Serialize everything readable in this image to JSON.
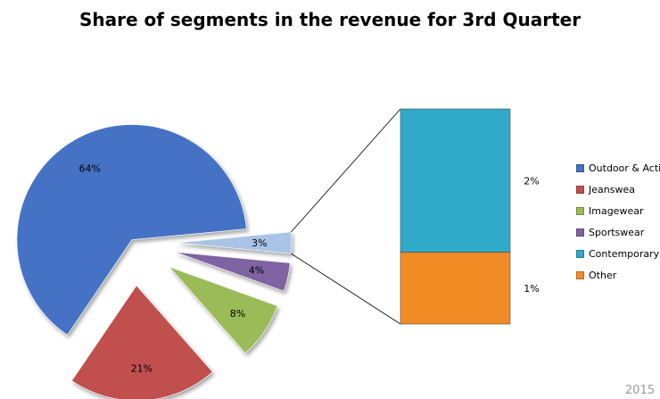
{
  "chart_data": {
    "type": "bar-of-pie",
    "title": "Share of  segments in the revenue for 3rd Quarter",
    "pie": [
      {
        "name": "Outdoor & Acti",
        "value": 64,
        "label": "64%",
        "color": "#4472C4"
      },
      {
        "name": "Jeanswea",
        "value": 21,
        "label": "21%",
        "color": "#C0504D"
      },
      {
        "name": "Imagewear",
        "value": 8,
        "label": "8%",
        "color": "#9BBB59"
      },
      {
        "name": "Sportswear",
        "value": 4,
        "label": "4%",
        "color": "#8064A2"
      },
      {
        "name": "Other (Contemporary + Other)",
        "value": 3,
        "label": "3%",
        "color": "#A9C4E6"
      }
    ],
    "bar": [
      {
        "name": "Contemporary",
        "value": 2,
        "label": "2%",
        "color": "#31A9C9"
      },
      {
        "name": "Other",
        "value": 1,
        "label": "1%",
        "color": "#F38B25"
      }
    ],
    "legend": [
      {
        "label": "Outdoor & Acti",
        "color": "#4472C4"
      },
      {
        "label": "Jeanswea",
        "color": "#C0504D"
      },
      {
        "label": "Imagewear",
        "color": "#9BBB59"
      },
      {
        "label": "Sportswear",
        "color": "#8064A2"
      },
      {
        "label": "Contemporary",
        "color": "#31A9C9"
      },
      {
        "label": "Other",
        "color": "#F38B25"
      }
    ],
    "legend_position": "right"
  },
  "footer": {
    "year": "2015"
  }
}
